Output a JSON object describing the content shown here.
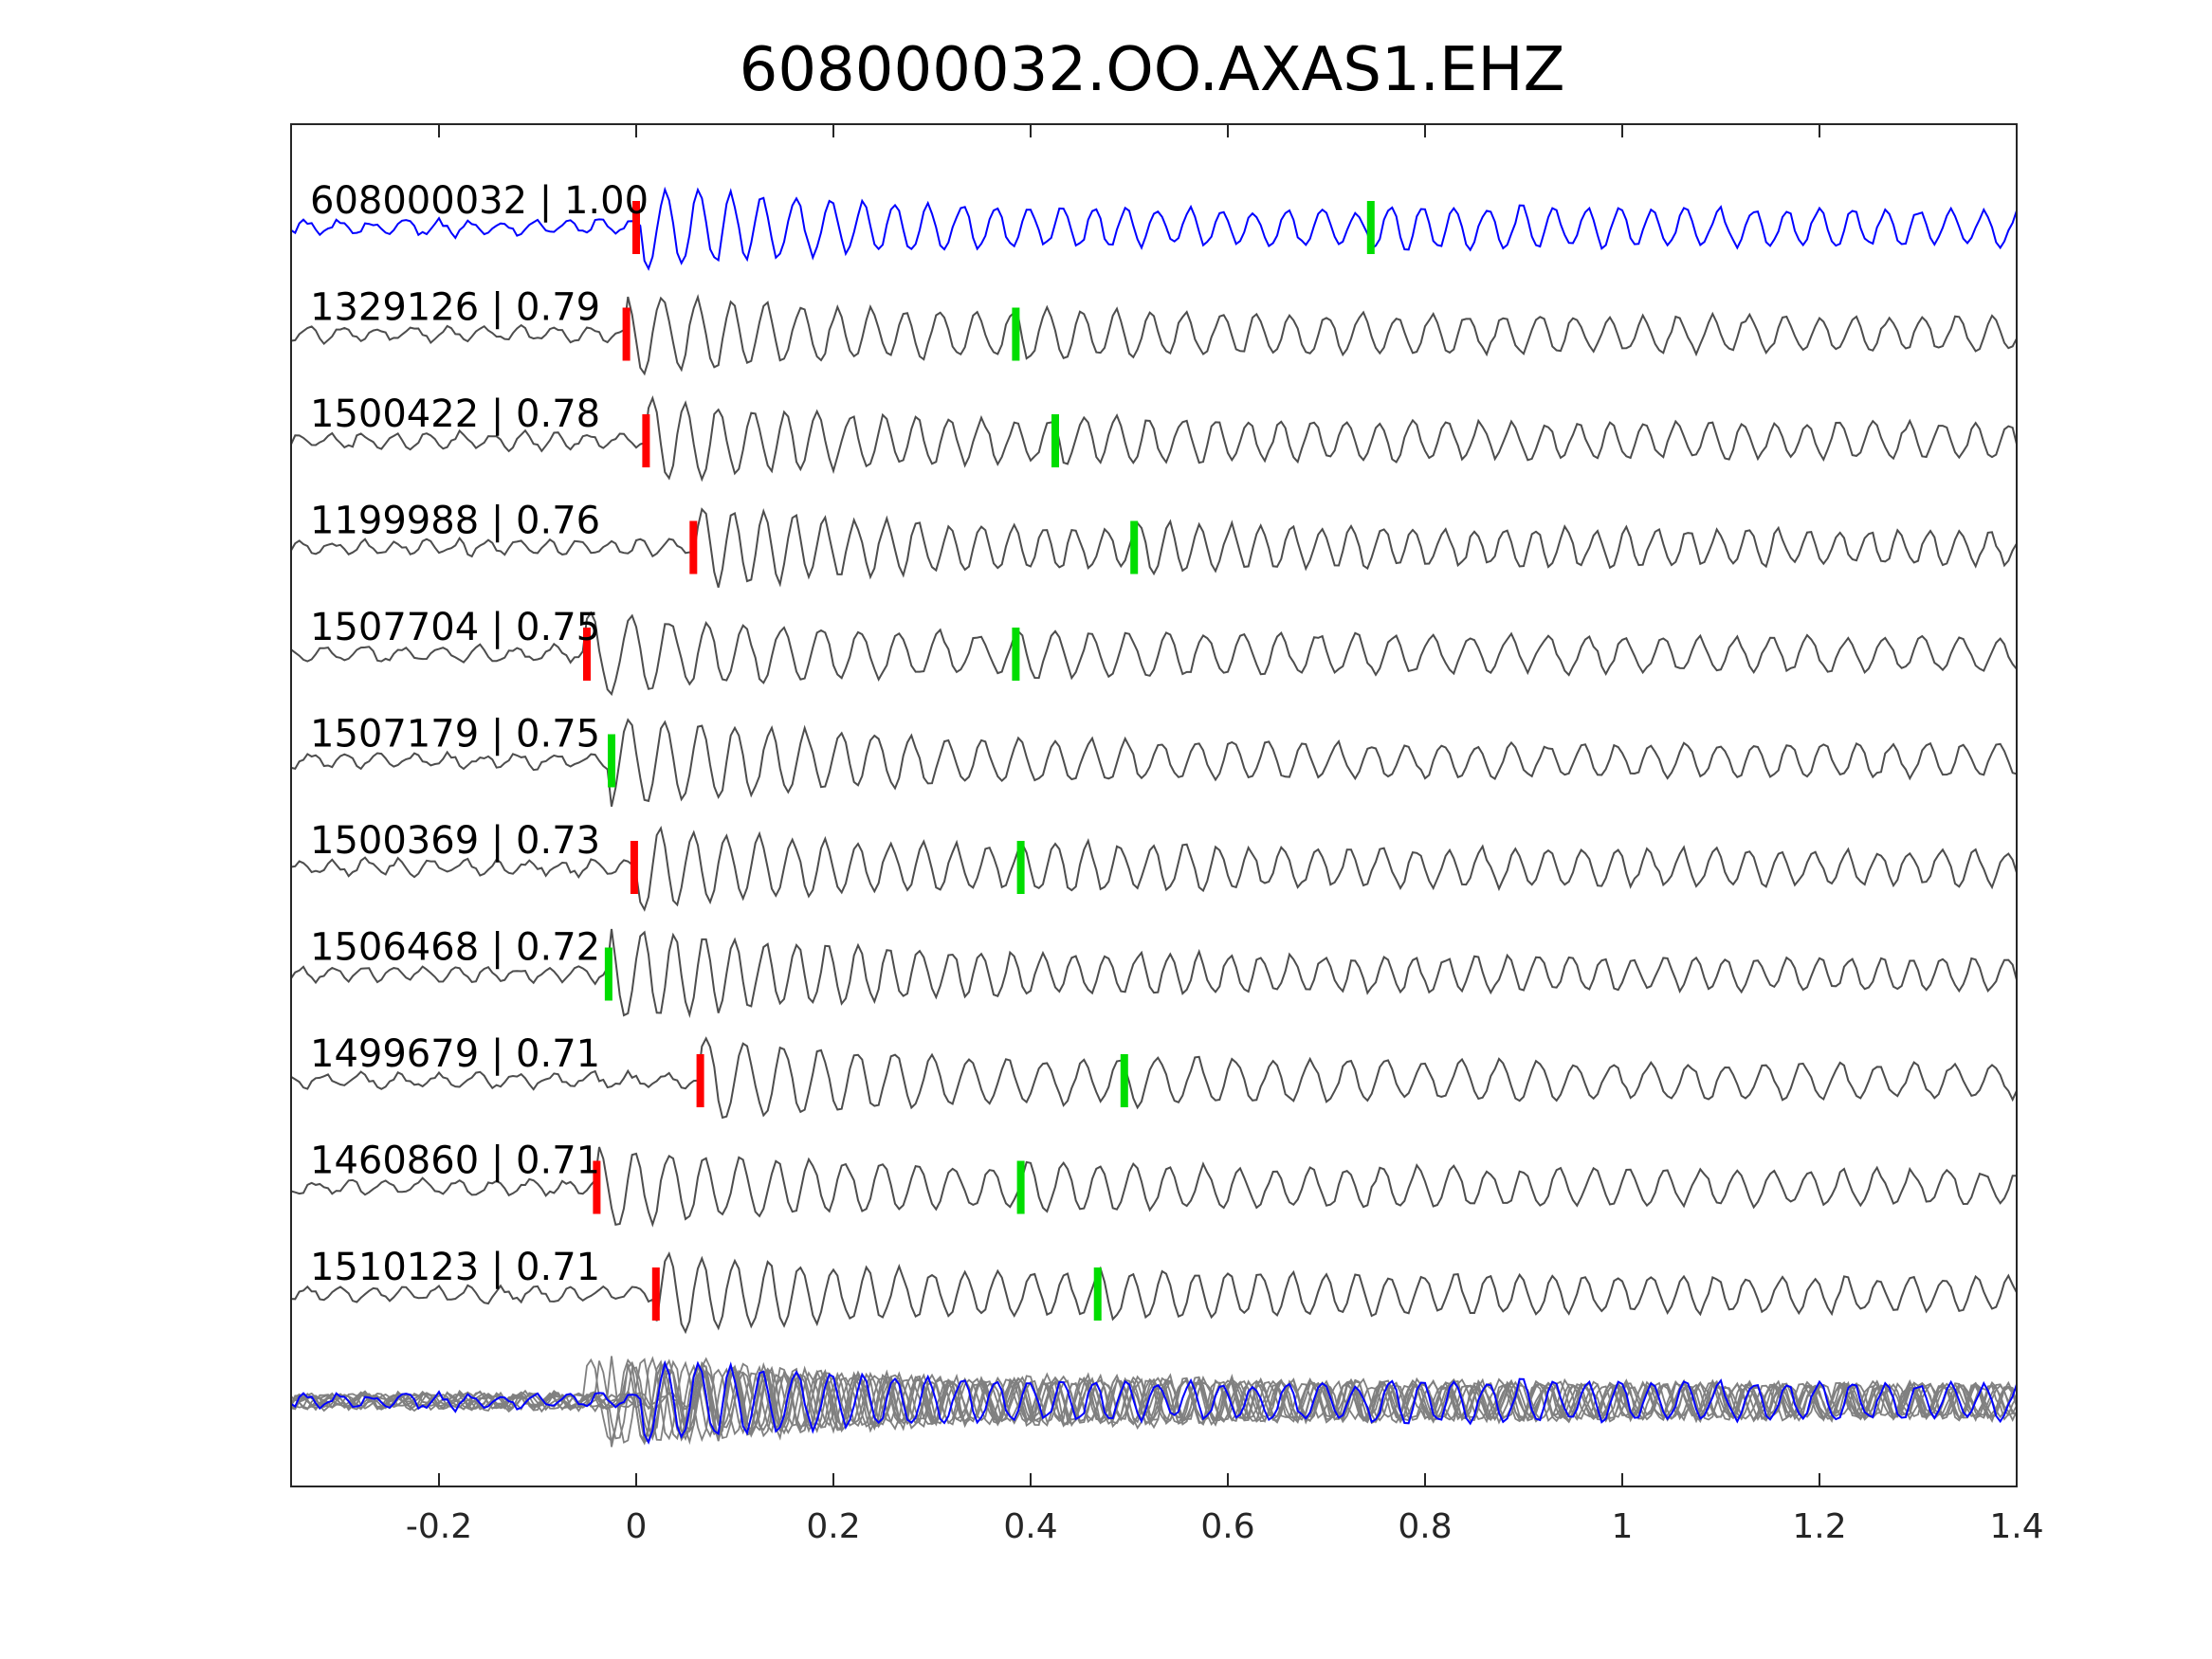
{
  "chart_data": {
    "type": "line",
    "title": "608000032.OO.AXAS1.EHZ",
    "xlabel": "",
    "ylabel": "",
    "xlim": [
      -0.35,
      1.4
    ],
    "x_ticks": [
      {
        "value": -0.2,
        "label": "-0.2"
      },
      {
        "value": 0,
        "label": "0"
      },
      {
        "value": 0.2,
        "label": "0.2"
      },
      {
        "value": 0.4,
        "label": "0.4"
      },
      {
        "value": 0.6,
        "label": "0.6"
      },
      {
        "value": 0.8,
        "label": "0.8"
      },
      {
        "value": 1,
        "label": "1"
      },
      {
        "value": 1.2,
        "label": "1.2"
      },
      {
        "value": 1.4,
        "label": "1.4"
      }
    ],
    "grid": false,
    "colors": {
      "template": "#0000ff",
      "trace": "#4d4d4d",
      "stack": "#808080",
      "p_pick": "#ff0000",
      "s_pick": "#00dd00"
    },
    "series": [
      {
        "name": "608000032 | 1.00",
        "template": true,
        "p_pick": 0.0,
        "s_pick": 0.745
      },
      {
        "name": "1329126 | 0.79",
        "p_pick": -0.01,
        "s_pick": 0.385
      },
      {
        "name": "1500422 | 0.78",
        "p_pick": 0.01,
        "s_pick": 0.425
      },
      {
        "name": "1199988 | 0.76",
        "p_pick": 0.058,
        "s_pick": 0.505
      },
      {
        "name": "1507704 | 0.75",
        "p_pick": -0.05,
        "s_pick": 0.385
      },
      {
        "name": "1507179 | 0.75",
        "p_pick": null,
        "s_pick": -0.025
      },
      {
        "name": "1500369 | 0.73",
        "p_pick": -0.002,
        "s_pick": 0.39
      },
      {
        "name": "1506468 | 0.72",
        "p_pick": null,
        "s_pick": -0.028
      },
      {
        "name": "1499679 | 0.71",
        "p_pick": 0.065,
        "s_pick": 0.495
      },
      {
        "name": "1460860 | 0.71",
        "p_pick": -0.04,
        "s_pick": 0.39
      },
      {
        "name": "1510123 | 0.71",
        "p_pick": 0.02,
        "s_pick": 0.468
      }
    ]
  }
}
